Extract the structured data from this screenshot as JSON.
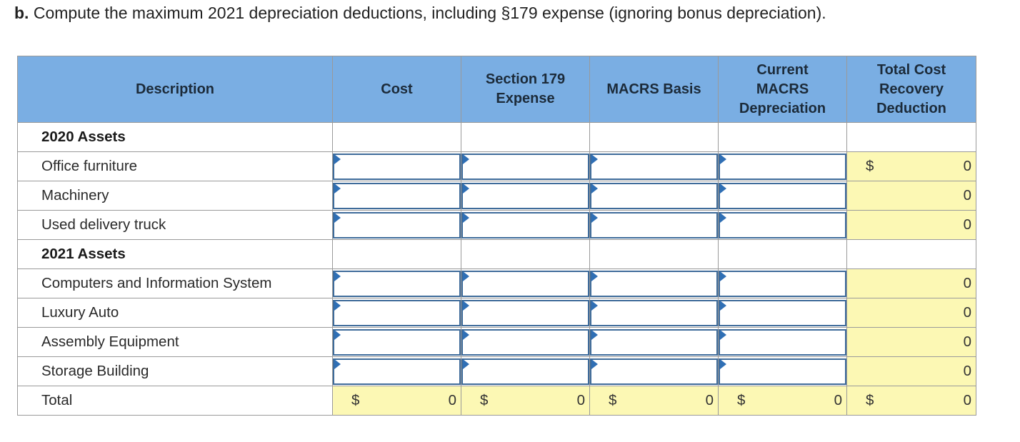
{
  "question": {
    "prefix": "b.",
    "text": " Compute the maximum 2021 depreciation deductions, including §179 expense (ignoring bonus depreciation)."
  },
  "table": {
    "headers": {
      "description": "Description",
      "cost": "Cost",
      "section179": "Section 179 Expense",
      "basis": "MACRS Basis",
      "current": "Current MACRS Depreciation",
      "total": "Total Cost Recovery Deduction"
    },
    "sections": {
      "s2020": "2020 Assets",
      "s2021": "2021 Assets"
    },
    "rows": [
      {
        "label": "Office furniture",
        "currency": "$",
        "total": "0"
      },
      {
        "label": "Machinery",
        "currency": "",
        "total": "0"
      },
      {
        "label": "Used delivery truck",
        "currency": "",
        "total": "0"
      },
      {
        "label": "Computers and Information System",
        "currency": "",
        "total": "0"
      },
      {
        "label": "Luxury Auto",
        "currency": "",
        "total": "0"
      },
      {
        "label": "Assembly Equipment",
        "currency": "",
        "total": "0"
      },
      {
        "label": "Storage Building",
        "currency": "",
        "total": "0"
      }
    ],
    "total_row": {
      "label": "Total",
      "currency": "$",
      "cost": "0",
      "section179": "0",
      "basis": "0",
      "current": "0",
      "total": "0"
    }
  },
  "colors": {
    "header_bg": "#7aaee3",
    "computed_bg": "#fcf8b4",
    "input_border": "#3e6b9a",
    "input_flag": "#2f6fb5"
  }
}
